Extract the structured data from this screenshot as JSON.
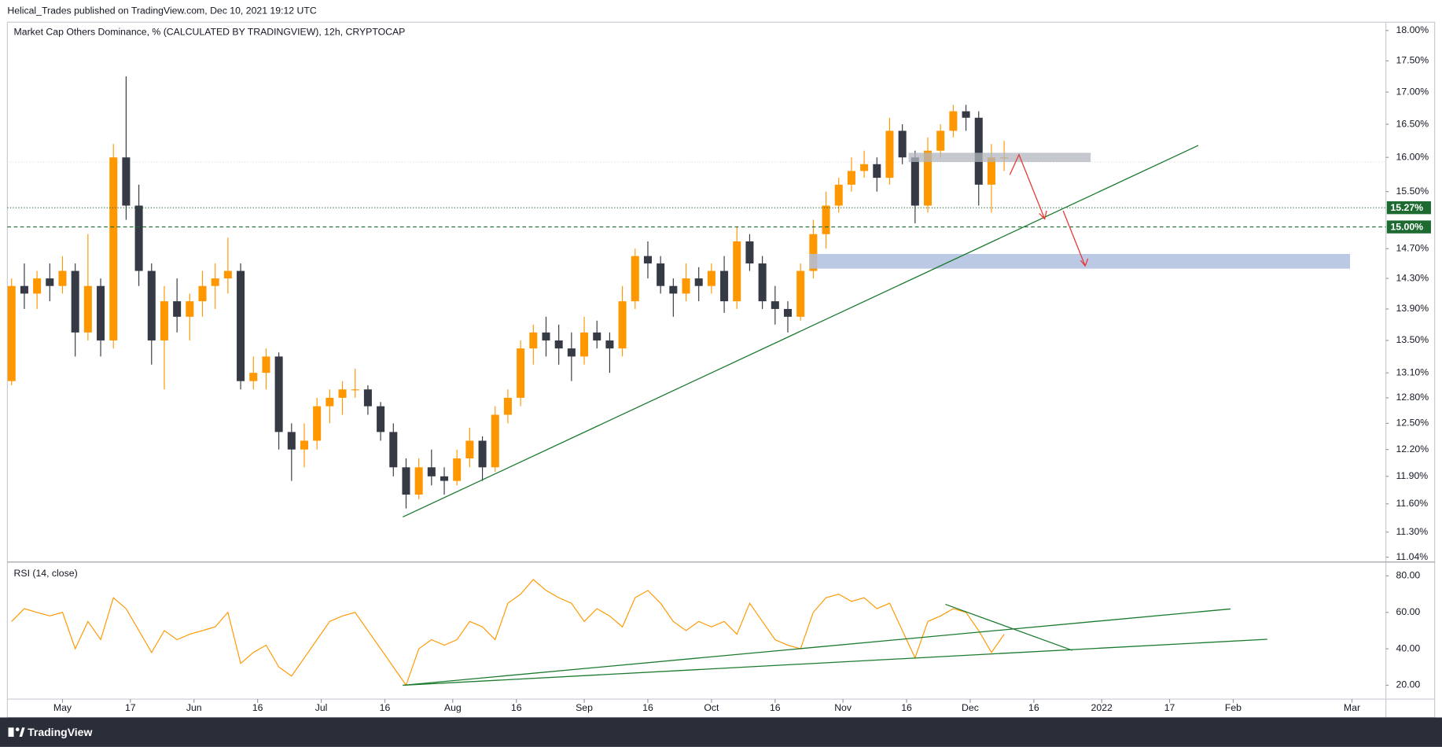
{
  "header": "Helical_Trades published on TradingView.com, Dec 10, 2021 19:12 UTC",
  "footer": "TradingView",
  "chart_data": [
    {
      "type": "candlestick",
      "title": "Market Cap Others Dominance, % (CALCULATED BY TRADINGVIEW), 12h, CRYPTOCAP",
      "log_scale": true,
      "up_color": "#ff9800",
      "down_color": "#363a45",
      "x": [
        "2021-04-19",
        "2021-04-22",
        "2021-04-25",
        "2021-04-28",
        "2021-05-01",
        "2021-05-04",
        "2021-05-07",
        "2021-05-10",
        "2021-05-13",
        "2021-05-16",
        "2021-05-19",
        "2021-05-22",
        "2021-05-25",
        "2021-05-28",
        "2021-05-31",
        "2021-06-03",
        "2021-06-06",
        "2021-06-09",
        "2021-06-12",
        "2021-06-15",
        "2021-06-18",
        "2021-06-21",
        "2021-06-24",
        "2021-06-27",
        "2021-06-30",
        "2021-07-03",
        "2021-07-06",
        "2021-07-09",
        "2021-07-12",
        "2021-07-15",
        "2021-07-18",
        "2021-07-21",
        "2021-07-24",
        "2021-07-27",
        "2021-07-30",
        "2021-08-02",
        "2021-08-05",
        "2021-08-08",
        "2021-08-11",
        "2021-08-14",
        "2021-08-17",
        "2021-08-20",
        "2021-08-23",
        "2021-08-26",
        "2021-08-29",
        "2021-09-01",
        "2021-09-04",
        "2021-09-07",
        "2021-09-10",
        "2021-09-13",
        "2021-09-16",
        "2021-09-19",
        "2021-09-22",
        "2021-09-25",
        "2021-09-28",
        "2021-10-01",
        "2021-10-04",
        "2021-10-07",
        "2021-10-10",
        "2021-10-13",
        "2021-10-16",
        "2021-10-19",
        "2021-10-22",
        "2021-10-25",
        "2021-10-28",
        "2021-10-31",
        "2021-11-03",
        "2021-11-06",
        "2021-11-09",
        "2021-11-12",
        "2021-11-15",
        "2021-11-18",
        "2021-11-21",
        "2021-11-24",
        "2021-11-27",
        "2021-11-30",
        "2021-12-03",
        "2021-12-06",
        "2021-12-09"
      ],
      "open": [
        13.0,
        14.2,
        14.1,
        14.3,
        14.2,
        14.4,
        13.6,
        14.2,
        13.5,
        16.0,
        15.3,
        14.4,
        13.5,
        14.0,
        13.8,
        14.0,
        14.2,
        14.3,
        14.4,
        13.0,
        13.1,
        13.3,
        12.4,
        12.2,
        12.3,
        12.7,
        12.8,
        12.9,
        12.9,
        12.7,
        12.4,
        12.0,
        11.7,
        12.0,
        11.9,
        11.85,
        12.1,
        12.3,
        12.0,
        12.6,
        12.8,
        13.4,
        13.6,
        13.5,
        13.4,
        13.3,
        13.6,
        13.5,
        13.4,
        14.0,
        14.6,
        14.5,
        14.2,
        14.1,
        14.3,
        14.2,
        14.4,
        14.0,
        14.8,
        14.5,
        14.0,
        13.9,
        13.8,
        14.4,
        14.9,
        15.3,
        15.6,
        15.8,
        15.9,
        15.7,
        16.4,
        16.0,
        15.3,
        16.1,
        16.4,
        16.7,
        16.6,
        15.6,
        16.0
      ],
      "high": [
        14.3,
        14.5,
        14.4,
        14.5,
        14.6,
        14.5,
        14.9,
        14.3,
        16.2,
        17.25,
        15.6,
        14.5,
        14.2,
        14.3,
        14.1,
        14.4,
        14.5,
        14.85,
        14.5,
        13.3,
        13.4,
        13.35,
        12.5,
        12.5,
        12.8,
        12.9,
        13.0,
        13.15,
        12.95,
        12.75,
        12.5,
        12.1,
        12.1,
        12.2,
        12.0,
        12.2,
        12.45,
        12.35,
        12.7,
        12.9,
        13.5,
        13.7,
        13.8,
        13.7,
        13.6,
        13.8,
        13.75,
        13.6,
        14.2,
        14.7,
        14.8,
        14.6,
        14.3,
        14.5,
        14.45,
        14.5,
        14.6,
        15.0,
        14.9,
        14.6,
        14.2,
        14.0,
        14.5,
        15.1,
        15.5,
        15.7,
        16.0,
        16.1,
        16.0,
        16.6,
        16.5,
        16.1,
        16.3,
        16.5,
        16.8,
        16.8,
        16.7,
        16.2,
        16.25
      ],
      "low": [
        12.95,
        13.9,
        13.9,
        14.0,
        14.1,
        13.3,
        13.5,
        13.3,
        13.4,
        15.1,
        14.2,
        13.2,
        12.9,
        13.6,
        13.5,
        13.8,
        13.9,
        14.1,
        12.9,
        12.9,
        12.9,
        12.2,
        11.85,
        12.0,
        12.2,
        12.5,
        12.6,
        12.8,
        12.6,
        12.3,
        11.9,
        11.55,
        11.65,
        11.8,
        11.7,
        11.8,
        12.0,
        11.85,
        11.95,
        12.5,
        12.7,
        13.2,
        13.3,
        13.2,
        13.0,
        13.2,
        13.4,
        13.1,
        13.3,
        13.9,
        14.3,
        14.1,
        13.8,
        14.0,
        14.0,
        14.1,
        13.85,
        13.9,
        14.4,
        13.9,
        13.7,
        13.6,
        13.75,
        14.3,
        14.7,
        15.2,
        15.5,
        15.7,
        15.5,
        15.6,
        15.9,
        15.05,
        15.2,
        16.0,
        16.3,
        16.4,
        15.3,
        15.2,
        15.8
      ],
      "close": [
        14.2,
        14.1,
        14.3,
        14.2,
        14.4,
        13.6,
        14.2,
        13.5,
        16.0,
        15.3,
        14.4,
        13.5,
        14.0,
        13.8,
        14.0,
        14.2,
        14.3,
        14.4,
        13.0,
        13.1,
        13.3,
        12.4,
        12.2,
        12.3,
        12.7,
        12.8,
        12.9,
        12.9,
        12.7,
        12.4,
        12.0,
        11.7,
        12.0,
        11.9,
        11.85,
        12.1,
        12.3,
        12.0,
        12.6,
        12.8,
        13.4,
        13.6,
        13.5,
        13.4,
        13.3,
        13.6,
        13.5,
        13.4,
        14.0,
        14.6,
        14.5,
        14.2,
        14.1,
        14.3,
        14.2,
        14.4,
        14.0,
        14.8,
        14.5,
        14.0,
        13.9,
        13.8,
        14.4,
        14.9,
        15.3,
        15.6,
        15.8,
        15.9,
        15.7,
        16.4,
        16.0,
        15.3,
        16.1,
        16.4,
        16.7,
        16.6,
        15.6,
        16.0,
        16.0
      ],
      "xlim": [
        "2021-04-18",
        "2022-03-09"
      ],
      "xticks": [
        {
          "value": "2021-05-01",
          "label": "May"
        },
        {
          "value": "2021-05-17",
          "label": "17"
        },
        {
          "value": "2021-06-01",
          "label": "Jun"
        },
        {
          "value": "2021-06-16",
          "label": "16"
        },
        {
          "value": "2021-07-01",
          "label": "Jul"
        },
        {
          "value": "2021-07-16",
          "label": "16"
        },
        {
          "value": "2021-08-01",
          "label": "Aug"
        },
        {
          "value": "2021-08-16",
          "label": "16"
        },
        {
          "value": "2021-09-01",
          "label": "Sep"
        },
        {
          "value": "2021-09-16",
          "label": "16"
        },
        {
          "value": "2021-10-01",
          "label": "Oct"
        },
        {
          "value": "2021-10-16",
          "label": "16"
        },
        {
          "value": "2021-11-01",
          "label": "Nov"
        },
        {
          "value": "2021-11-16",
          "label": "16"
        },
        {
          "value": "2021-12-01",
          "label": "Dec"
        },
        {
          "value": "2021-12-16",
          "label": "16"
        },
        {
          "value": "2022-01-01",
          "label": "2022"
        },
        {
          "value": "2022-01-17",
          "label": "17"
        },
        {
          "value": "2022-02-01",
          "label": "Feb"
        },
        {
          "value": "2022-03-01",
          "label": "Mar"
        }
      ],
      "ylim": [
        10.99,
        18.14
      ],
      "yticks": [
        {
          "value": 18,
          "label": "18.00%"
        },
        {
          "value": 17.5,
          "label": "17.50%"
        },
        {
          "value": 17,
          "label": "17.00%"
        },
        {
          "value": 16.5,
          "label": "16.50%"
        },
        {
          "value": 16,
          "label": "16.00%"
        },
        {
          "value": 15.5,
          "label": "15.50%"
        },
        {
          "value": 14.7,
          "label": "14.70%"
        },
        {
          "value": 14.3,
          "label": "14.30%"
        },
        {
          "value": 13.9,
          "label": "13.90%"
        },
        {
          "value": 13.5,
          "label": "13.50%"
        },
        {
          "value": 13.1,
          "label": "13.10%"
        },
        {
          "value": 12.8,
          "label": "12.80%"
        },
        {
          "value": 12.5,
          "label": "12.50%"
        },
        {
          "value": 12.2,
          "label": "12.20%"
        },
        {
          "value": 11.9,
          "label": "11.90%"
        },
        {
          "value": 11.6,
          "label": "11.60%"
        },
        {
          "value": 11.3,
          "label": "11.30%"
        },
        {
          "value": 11.04,
          "label": "11.04%"
        }
      ],
      "price_lines": [
        {
          "value": 15.27,
          "label": "15.27%",
          "style": "dotted",
          "color": "#1e6b32"
        },
        {
          "value": 15,
          "label": "15.00%",
          "style": "dashed",
          "color": "#1e6b32"
        }
      ]
    },
    {
      "type": "line",
      "title": "RSI (14, close)",
      "color": "#ff9800",
      "values": [
        55,
        62,
        60,
        58,
        60,
        40,
        55,
        45,
        68,
        62,
        50,
        38,
        50,
        45,
        48,
        50,
        52,
        60,
        32,
        38,
        42,
        30,
        25,
        35,
        45,
        55,
        58,
        60,
        50,
        40,
        30,
        20,
        40,
        45,
        42,
        45,
        55,
        52,
        45,
        65,
        70,
        78,
        72,
        68,
        65,
        55,
        62,
        58,
        52,
        68,
        72,
        65,
        55,
        50,
        55,
        52,
        55,
        48,
        65,
        55,
        45,
        42,
        40,
        60,
        68,
        70,
        66,
        68,
        62,
        65,
        50,
        35,
        55,
        58,
        62,
        60,
        50,
        38,
        48
      ],
      "ylim": [
        12.4,
        87.6
      ],
      "yticks": [
        {
          "value": 80,
          "label": "80.00"
        },
        {
          "value": 60,
          "label": "60.00"
        },
        {
          "value": 40,
          "label": "40.00"
        },
        {
          "value": 20,
          "label": "20.00"
        }
      ]
    }
  ]
}
